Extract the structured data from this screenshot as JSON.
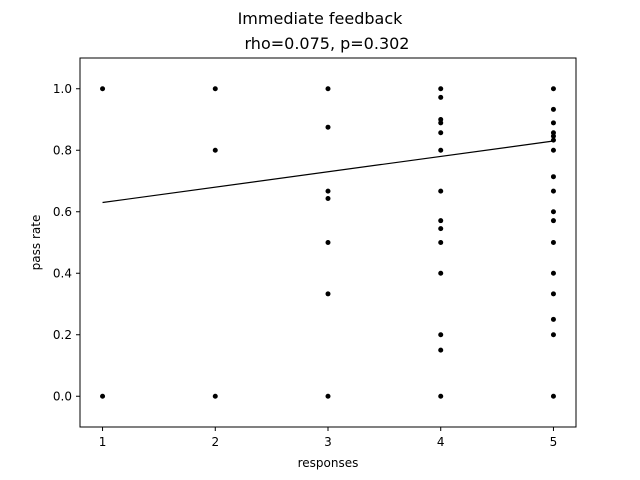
{
  "chart_data": {
    "type": "scatter",
    "title": "Immediate feedback",
    "subtitle": "rho=0.075, p=0.302",
    "xlabel": "responses",
    "ylabel": "pass rate",
    "xlim": [
      0.8,
      5.2
    ],
    "ylim": [
      -0.1,
      1.1
    ],
    "xticks": [
      1,
      2,
      3,
      4,
      5
    ],
    "yticks": [
      0.0,
      0.2,
      0.4,
      0.6,
      0.8,
      1.0
    ],
    "ytick_labels": [
      "0.0",
      "0.2",
      "0.4",
      "0.6",
      "0.8",
      "1.0"
    ],
    "grid": false,
    "marker_color": "#000000",
    "line_color": "#000000",
    "points": [
      {
        "x": 1,
        "y": 1.0
      },
      {
        "x": 1,
        "y": 0.0
      },
      {
        "x": 2,
        "y": 1.0
      },
      {
        "x": 2,
        "y": 0.8
      },
      {
        "x": 2,
        "y": 0.0
      },
      {
        "x": 3,
        "y": 1.0
      },
      {
        "x": 3,
        "y": 0.875
      },
      {
        "x": 3,
        "y": 0.667
      },
      {
        "x": 3,
        "y": 0.643
      },
      {
        "x": 3,
        "y": 0.5
      },
      {
        "x": 3,
        "y": 0.333
      },
      {
        "x": 3,
        "y": 0.0
      },
      {
        "x": 4,
        "y": 1.0
      },
      {
        "x": 4,
        "y": 0.972
      },
      {
        "x": 4,
        "y": 0.9
      },
      {
        "x": 4,
        "y": 0.889
      },
      {
        "x": 4,
        "y": 0.857
      },
      {
        "x": 4,
        "y": 0.8
      },
      {
        "x": 4,
        "y": 0.667
      },
      {
        "x": 4,
        "y": 0.571
      },
      {
        "x": 4,
        "y": 0.545
      },
      {
        "x": 4,
        "y": 0.5
      },
      {
        "x": 4,
        "y": 0.4
      },
      {
        "x": 4,
        "y": 0.2
      },
      {
        "x": 4,
        "y": 0.15
      },
      {
        "x": 4,
        "y": 0.0
      },
      {
        "x": 5,
        "y": 1.0
      },
      {
        "x": 5,
        "y": 0.933
      },
      {
        "x": 5,
        "y": 0.889
      },
      {
        "x": 5,
        "y": 0.857
      },
      {
        "x": 5,
        "y": 0.846
      },
      {
        "x": 5,
        "y": 0.833
      },
      {
        "x": 5,
        "y": 0.8
      },
      {
        "x": 5,
        "y": 0.714
      },
      {
        "x": 5,
        "y": 0.667
      },
      {
        "x": 5,
        "y": 0.6
      },
      {
        "x": 5,
        "y": 0.571
      },
      {
        "x": 5,
        "y": 0.5
      },
      {
        "x": 5,
        "y": 0.4
      },
      {
        "x": 5,
        "y": 0.333
      },
      {
        "x": 5,
        "y": 0.25
      },
      {
        "x": 5,
        "y": 0.2
      },
      {
        "x": 5,
        "y": 0.0
      }
    ],
    "trend_line": {
      "x": [
        1,
        5
      ],
      "y": [
        0.63,
        0.83
      ]
    }
  }
}
